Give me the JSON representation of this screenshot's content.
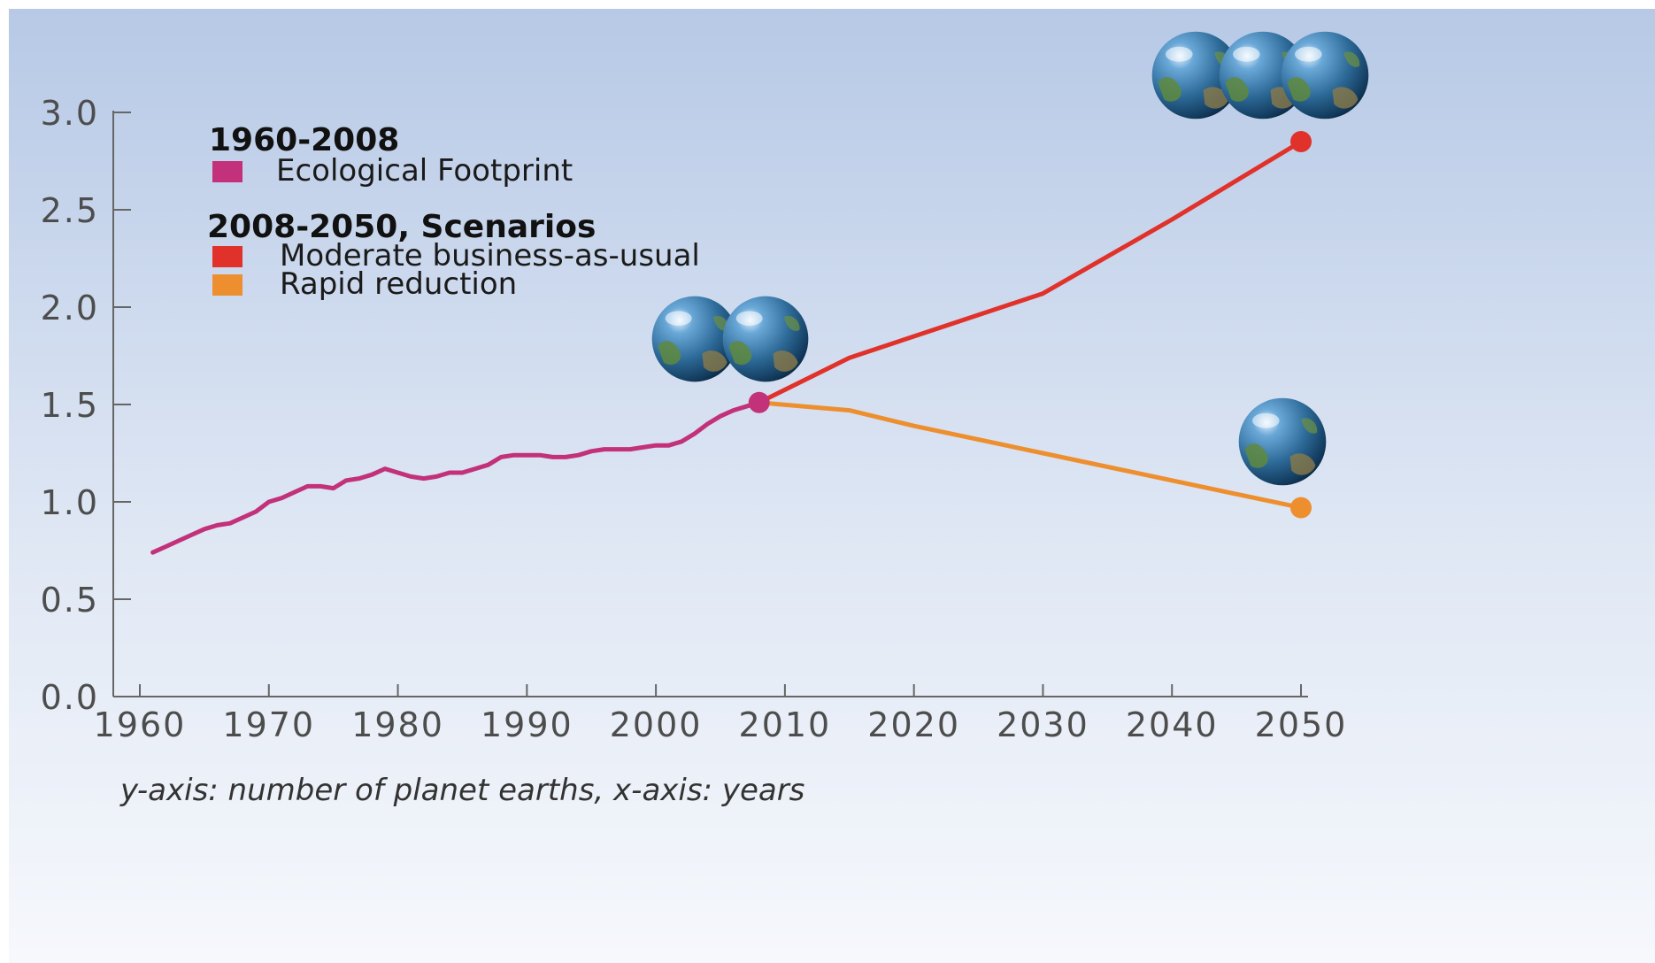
{
  "chart_data": {
    "type": "line",
    "x_ticks": [
      "1960",
      "1970",
      "1980",
      "1990",
      "2000",
      "2010",
      "2020",
      "2030",
      "2040",
      "2050"
    ],
    "y_ticks": [
      "0.0",
      "0.5",
      "1.0",
      "1.5",
      "2.0",
      "2.5",
      "3.0"
    ],
    "xlim": [
      1960,
      2050
    ],
    "ylim": [
      0,
      3.0
    ],
    "legend": {
      "group1_title": "1960-2008",
      "group2_title": "2008-2050, Scenarios"
    },
    "series": [
      {
        "name": "Ecological Footprint",
        "color": "#c2317a",
        "x": [
          1961,
          1962,
          1963,
          1964,
          1965,
          1966,
          1967,
          1968,
          1969,
          1970,
          1971,
          1972,
          1973,
          1974,
          1975,
          1976,
          1977,
          1978,
          1979,
          1980,
          1981,
          1982,
          1983,
          1984,
          1985,
          1986,
          1987,
          1988,
          1989,
          1990,
          1991,
          1992,
          1993,
          1994,
          1995,
          1996,
          1997,
          1998,
          1999,
          2000,
          2001,
          2002,
          2003,
          2004,
          2005,
          2006,
          2007,
          2008
        ],
        "y": [
          0.74,
          0.77,
          0.8,
          0.83,
          0.86,
          0.88,
          0.89,
          0.92,
          0.95,
          1.0,
          1.02,
          1.05,
          1.08,
          1.08,
          1.07,
          1.11,
          1.12,
          1.14,
          1.17,
          1.15,
          1.13,
          1.12,
          1.13,
          1.15,
          1.15,
          1.17,
          1.19,
          1.23,
          1.24,
          1.24,
          1.24,
          1.23,
          1.23,
          1.24,
          1.26,
          1.27,
          1.27,
          1.27,
          1.28,
          1.29,
          1.29,
          1.31,
          1.35,
          1.4,
          1.44,
          1.47,
          1.49,
          1.51
        ]
      },
      {
        "name": "Moderate business-as-usual",
        "color": "#e0322a",
        "x": [
          2008,
          2015,
          2020,
          2030,
          2040,
          2050
        ],
        "y": [
          1.51,
          1.74,
          1.85,
          2.07,
          2.45,
          2.85
        ]
      },
      {
        "name": "Rapid reduction",
        "color": "#ee8f2f",
        "x": [
          2008,
          2015,
          2020,
          2030,
          2040,
          2050
        ],
        "y": [
          1.51,
          1.47,
          1.39,
          1.25,
          1.11,
          0.97
        ]
      }
    ],
    "caption": "y-axis: number of planet earths, x-axis: years"
  }
}
